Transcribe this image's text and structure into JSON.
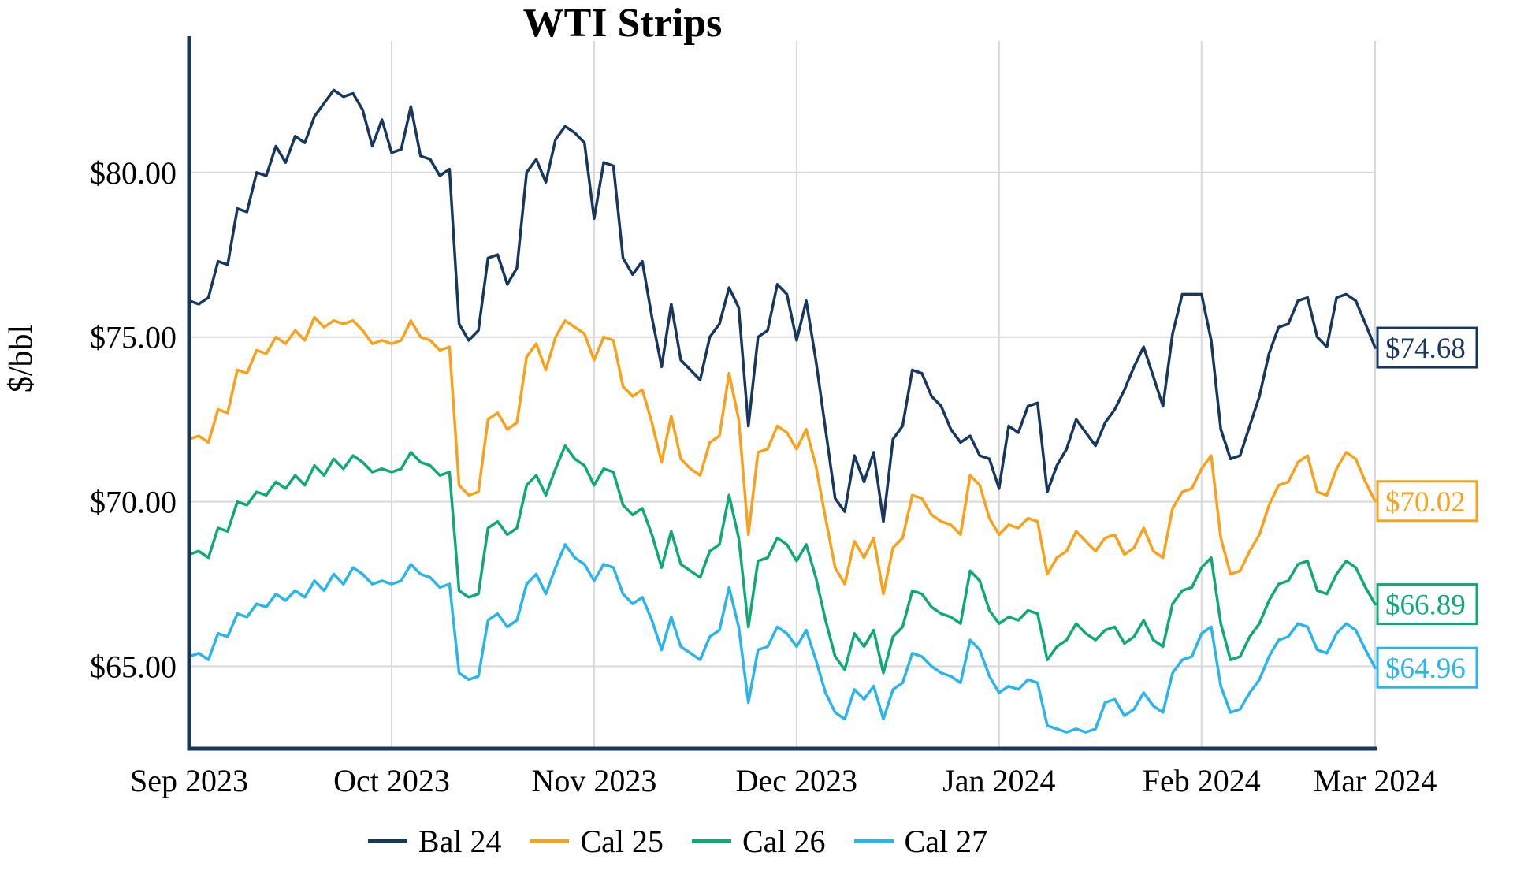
{
  "chart_data": {
    "type": "line",
    "title": "WTI Strips",
    "ylabel": "$/bbl",
    "xlabel": "",
    "ylim": [
      62.5,
      83.8
    ],
    "yticks": [
      65,
      70,
      75,
      80
    ],
    "ytick_labels": [
      "$65.00",
      "$70.00",
      "$75.00",
      "$80.00"
    ],
    "xtick_labels": [
      "Sep 2023",
      "Oct 2023",
      "Nov 2023",
      "Dec 2023",
      "Jan 2024",
      "Feb 2024",
      "Mar 2024"
    ],
    "xtick_indices": [
      0,
      21,
      42,
      63,
      84,
      105,
      123
    ],
    "grid": true,
    "legend_position": "bottom",
    "colors": {
      "grid": "#d9d9d9",
      "axis": "#17375e",
      "background": "#ffffff"
    },
    "series": [
      {
        "name": "Bal 24",
        "color": "#17375e",
        "end_label": "$74.68",
        "end_value": 74.68,
        "values": [
          76.1,
          76.0,
          76.2,
          77.3,
          77.2,
          78.9,
          78.8,
          80.0,
          79.9,
          80.8,
          80.3,
          81.1,
          80.9,
          81.7,
          82.1,
          82.5,
          82.3,
          82.4,
          81.9,
          80.8,
          81.6,
          80.6,
          80.7,
          82.0,
          80.5,
          80.4,
          79.9,
          80.1,
          75.4,
          74.9,
          75.2,
          77.4,
          77.5,
          76.6,
          77.1,
          80.0,
          80.4,
          79.7,
          81.0,
          81.4,
          81.2,
          80.9,
          78.6,
          80.3,
          80.2,
          77.4,
          76.9,
          77.3,
          75.6,
          74.1,
          76.0,
          74.3,
          74.0,
          73.7,
          75.0,
          75.4,
          76.5,
          75.9,
          72.3,
          75.0,
          75.2,
          76.6,
          76.3,
          74.9,
          76.1,
          74.3,
          72.2,
          70.1,
          69.7,
          71.4,
          70.6,
          71.5,
          69.4,
          71.9,
          72.3,
          74.0,
          73.9,
          73.2,
          72.9,
          72.2,
          71.8,
          72.0,
          71.4,
          71.3,
          70.4,
          72.3,
          72.1,
          72.9,
          73.0,
          70.3,
          71.1,
          71.6,
          72.5,
          72.1,
          71.7,
          72.4,
          72.8,
          73.4,
          74.1,
          74.7,
          73.8,
          72.9,
          75.1,
          76.3,
          76.3,
          76.3,
          74.9,
          72.2,
          71.3,
          71.4,
          72.3,
          73.2,
          74.5,
          75.3,
          75.4,
          76.1,
          76.2,
          75.0,
          74.7,
          76.2,
          76.3,
          76.1,
          75.4,
          74.68
        ]
      },
      {
        "name": "Cal 25",
        "color": "#f9a11b",
        "end_label": "$70.02",
        "end_value": 70.02,
        "values": [
          71.9,
          72.0,
          71.8,
          72.8,
          72.7,
          74.0,
          73.9,
          74.6,
          74.5,
          75.0,
          74.8,
          75.2,
          74.9,
          75.6,
          75.3,
          75.5,
          75.4,
          75.5,
          75.2,
          74.8,
          74.9,
          74.8,
          74.9,
          75.5,
          75.0,
          74.9,
          74.6,
          74.7,
          70.5,
          70.2,
          70.3,
          72.5,
          72.7,
          72.2,
          72.4,
          74.4,
          74.8,
          74.0,
          75.0,
          75.5,
          75.3,
          75.1,
          74.3,
          75.0,
          74.9,
          73.5,
          73.2,
          73.4,
          72.4,
          71.2,
          72.6,
          71.3,
          71.0,
          70.8,
          71.8,
          72.0,
          73.9,
          72.5,
          69.0,
          71.5,
          71.6,
          72.3,
          72.1,
          71.6,
          72.2,
          71.1,
          69.5,
          68.0,
          67.5,
          68.8,
          68.3,
          68.9,
          67.2,
          68.6,
          68.9,
          70.2,
          70.1,
          69.6,
          69.4,
          69.3,
          69.0,
          70.8,
          70.5,
          69.5,
          69.0,
          69.3,
          69.2,
          69.5,
          69.4,
          67.8,
          68.3,
          68.5,
          69.1,
          68.8,
          68.5,
          68.9,
          69.0,
          68.4,
          68.6,
          69.2,
          68.5,
          68.3,
          69.8,
          70.3,
          70.4,
          71.0,
          71.4,
          68.9,
          67.8,
          67.9,
          68.5,
          69.0,
          69.9,
          70.5,
          70.6,
          71.2,
          71.4,
          70.3,
          70.2,
          71.0,
          71.5,
          71.3,
          70.6,
          70.02
        ]
      },
      {
        "name": "Cal 26",
        "color": "#0fa878",
        "end_label": "$66.89",
        "end_value": 66.89,
        "values": [
          68.4,
          68.5,
          68.3,
          69.2,
          69.1,
          70.0,
          69.9,
          70.3,
          70.2,
          70.6,
          70.4,
          70.8,
          70.5,
          71.1,
          70.8,
          71.3,
          71.0,
          71.4,
          71.2,
          70.9,
          71.0,
          70.9,
          71.0,
          71.5,
          71.2,
          71.1,
          70.8,
          70.9,
          67.3,
          67.1,
          67.2,
          69.2,
          69.4,
          69.0,
          69.2,
          70.5,
          70.8,
          70.2,
          71.0,
          71.7,
          71.3,
          71.1,
          70.5,
          71.0,
          70.9,
          69.9,
          69.6,
          69.8,
          69.0,
          68.0,
          69.1,
          68.1,
          67.9,
          67.7,
          68.5,
          68.7,
          70.2,
          68.9,
          66.2,
          68.2,
          68.3,
          68.9,
          68.7,
          68.2,
          68.7,
          67.7,
          66.4,
          65.3,
          64.9,
          66.0,
          65.6,
          66.1,
          64.8,
          65.9,
          66.2,
          67.3,
          67.2,
          66.8,
          66.6,
          66.5,
          66.3,
          67.9,
          67.6,
          66.7,
          66.3,
          66.5,
          66.4,
          66.7,
          66.6,
          65.2,
          65.6,
          65.8,
          66.3,
          66.0,
          65.8,
          66.1,
          66.2,
          65.7,
          65.9,
          66.4,
          65.8,
          65.6,
          66.9,
          67.3,
          67.4,
          68.0,
          68.3,
          66.3,
          65.2,
          65.3,
          65.9,
          66.3,
          67.0,
          67.5,
          67.6,
          68.1,
          68.2,
          67.3,
          67.2,
          67.8,
          68.2,
          68.0,
          67.4,
          66.89
        ]
      },
      {
        "name": "Cal 27",
        "color": "#29b5ea",
        "end_label": "$64.96",
        "end_value": 64.96,
        "values": [
          65.3,
          65.4,
          65.2,
          66.0,
          65.9,
          66.6,
          66.5,
          66.9,
          66.8,
          67.2,
          67.0,
          67.3,
          67.1,
          67.6,
          67.3,
          67.8,
          67.5,
          68.0,
          67.8,
          67.5,
          67.6,
          67.5,
          67.6,
          68.1,
          67.8,
          67.7,
          67.4,
          67.5,
          64.8,
          64.6,
          64.7,
          66.4,
          66.6,
          66.2,
          66.4,
          67.5,
          67.8,
          67.2,
          68.0,
          68.7,
          68.3,
          68.1,
          67.6,
          68.1,
          68.0,
          67.2,
          66.9,
          67.1,
          66.4,
          65.5,
          66.5,
          65.6,
          65.4,
          65.2,
          65.9,
          66.1,
          67.4,
          66.2,
          63.9,
          65.5,
          65.6,
          66.2,
          66.0,
          65.6,
          66.1,
          65.2,
          64.2,
          63.6,
          63.4,
          64.3,
          64.0,
          64.4,
          63.4,
          64.3,
          64.5,
          65.4,
          65.3,
          65.0,
          64.8,
          64.7,
          64.5,
          65.8,
          65.5,
          64.7,
          64.2,
          64.4,
          64.3,
          64.6,
          64.5,
          63.2,
          63.1,
          63.0,
          63.1,
          63.0,
          63.1,
          63.9,
          64.0,
          63.5,
          63.7,
          64.2,
          63.8,
          63.6,
          64.8,
          65.2,
          65.3,
          66.0,
          66.2,
          64.4,
          63.6,
          63.7,
          64.2,
          64.6,
          65.3,
          65.8,
          65.9,
          66.3,
          66.2,
          65.5,
          65.4,
          66.0,
          66.3,
          66.1,
          65.5,
          64.96
        ]
      }
    ]
  }
}
